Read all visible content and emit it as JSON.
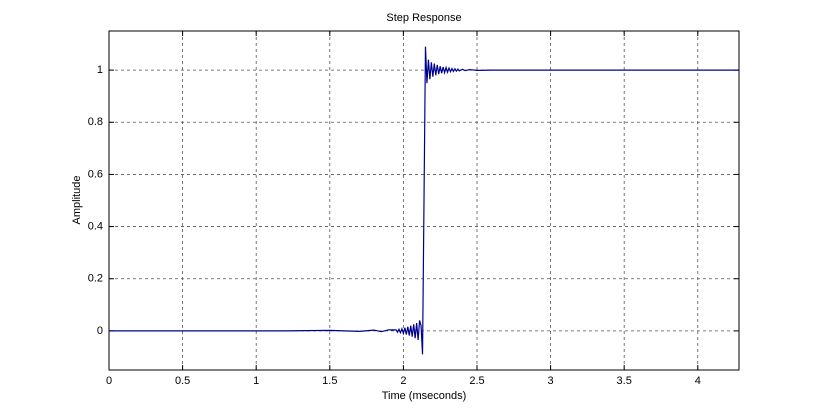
{
  "chart_data": {
    "type": "line",
    "title": "Step Response",
    "x_label": "Time (mseconds)",
    "y_label": "Amplitude",
    "x": [
      0,
      1.2,
      1.5,
      1.7,
      1.8,
      1.85,
      1.9,
      1.95,
      1.96,
      1.97,
      1.98,
      1.99,
      2.0,
      2.01,
      2.02,
      2.03,
      2.04,
      2.05,
      2.06,
      2.07,
      2.08,
      2.09,
      2.1,
      2.11,
      2.12,
      2.13,
      2.14,
      2.15,
      2.16,
      2.17,
      2.18,
      2.19,
      2.2,
      2.21,
      2.22,
      2.23,
      2.24,
      2.25,
      2.26,
      2.27,
      2.28,
      2.29,
      2.3,
      2.31,
      2.32,
      2.33,
      2.34,
      2.35,
      2.36,
      2.37,
      2.38,
      2.4,
      2.42,
      2.45,
      2.5,
      2.6,
      3.0,
      4.28
    ],
    "values": [
      0,
      0,
      0.002,
      -0.002,
      0.003,
      -0.003,
      0.004,
      0.004,
      -0.005,
      0.006,
      -0.007,
      0.008,
      -0.01,
      0.012,
      -0.014,
      0.016,
      -0.018,
      0.02,
      -0.022,
      0.025,
      -0.028,
      0.03,
      -0.035,
      0.04,
      0.02,
      -0.09,
      0.5,
      1.09,
      0.95,
      1.04,
      0.965,
      1.03,
      0.975,
      1.025,
      0.98,
      1.02,
      0.985,
      1.015,
      0.988,
      1.012,
      0.99,
      1.01,
      0.992,
      1.008,
      0.994,
      1.006,
      0.995,
      1.005,
      0.996,
      1.004,
      0.997,
      1.003,
      0.998,
      1.002,
      0.999,
      1,
      1,
      1
    ],
    "color": "#00008f",
    "xlim": [
      0,
      4.28
    ],
    "ylim": [
      -0.15,
      1.15
    ],
    "xticks": [
      0,
      0.5,
      1,
      1.5,
      2,
      2.5,
      3,
      3.5,
      4
    ],
    "yticks": [
      0,
      0.2,
      0.4,
      0.6,
      0.8,
      1
    ],
    "grid": true
  }
}
